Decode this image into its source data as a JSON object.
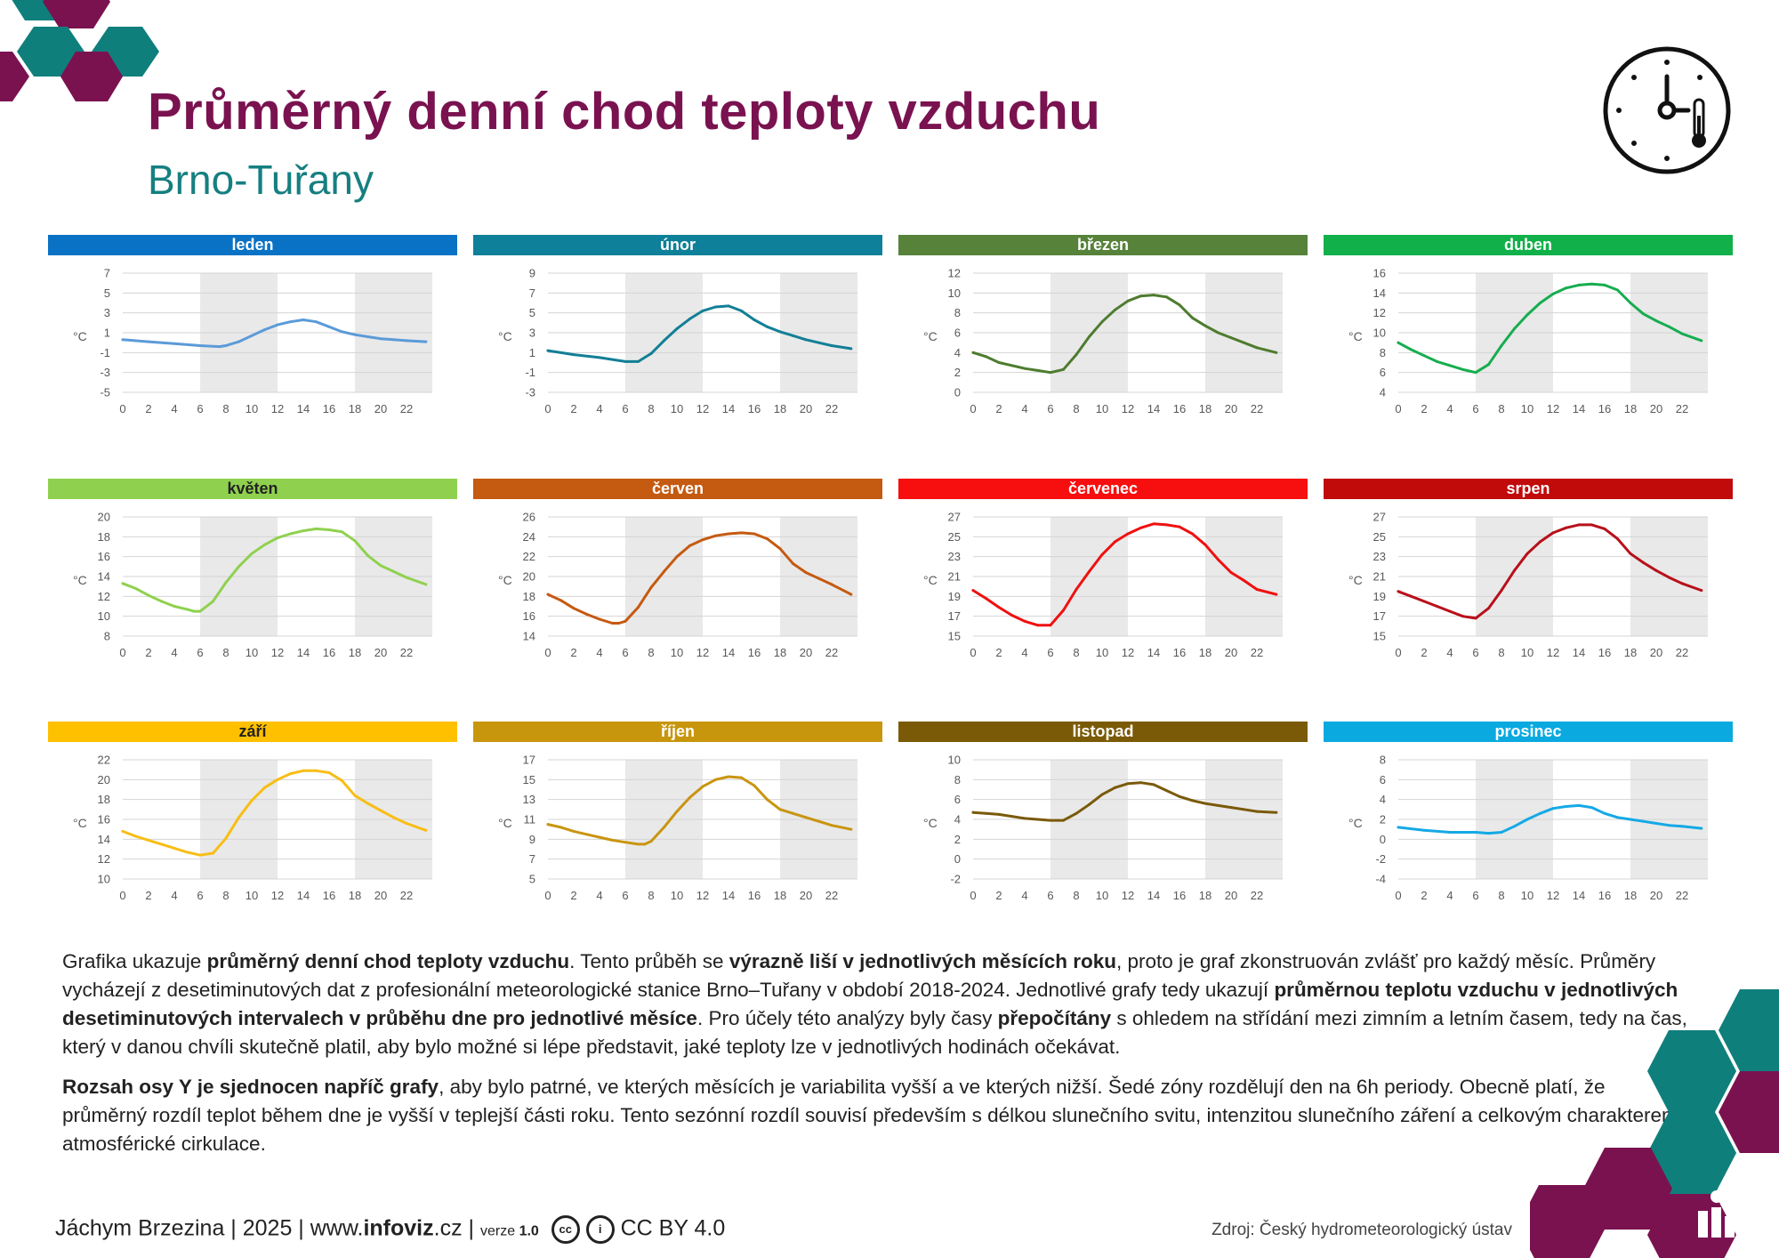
{
  "header": {
    "title": "Průměrný denní chod teploty vzduchu",
    "subtitle": "Brno-Tuřany"
  },
  "colors": {
    "title": "#7a1250",
    "subtitle": "#167f80",
    "hex_teal": "#0f7f7c",
    "hex_purple": "#7a1250",
    "grey_zone": "#e9e9e9"
  },
  "chart_data": [
    {
      "type": "line",
      "title": "leden",
      "color": "#0a72c4",
      "line_color": "#5b9bd8",
      "ylabel": "°C",
      "ylim": [
        -5,
        7
      ],
      "yticks": [
        -5,
        -3,
        -1,
        1,
        3,
        5,
        7
      ],
      "x": [
        0,
        2,
        4,
        6,
        7.5,
        8,
        9,
        10,
        11,
        12,
        13,
        14,
        15,
        16,
        17,
        18,
        19,
        20,
        21,
        22,
        23.5
      ],
      "values": [
        0.3,
        0.1,
        -0.1,
        -0.3,
        -0.4,
        -0.3,
        0.1,
        0.7,
        1.3,
        1.8,
        2.1,
        2.3,
        2.1,
        1.6,
        1.1,
        0.8,
        0.6,
        0.4,
        0.3,
        0.2,
        0.1
      ]
    },
    {
      "type": "line",
      "title": "únor",
      "color": "#0e8099",
      "line_color": "#127f96",
      "ylabel": "°C",
      "ylim": [
        -3,
        9
      ],
      "yticks": [
        -3,
        -1,
        1,
        3,
        5,
        7,
        9
      ],
      "x": [
        0,
        2,
        4,
        6,
        7,
        8,
        9,
        10,
        11,
        12,
        13,
        14,
        15,
        16,
        17,
        18,
        19,
        20,
        21,
        22,
        23.5
      ],
      "values": [
        1.2,
        0.8,
        0.5,
        0.1,
        0.1,
        0.9,
        2.2,
        3.4,
        4.4,
        5.2,
        5.6,
        5.7,
        5.2,
        4.3,
        3.6,
        3.1,
        2.7,
        2.3,
        2.0,
        1.7,
        1.4
      ]
    },
    {
      "type": "line",
      "title": "březen",
      "color": "#56823a",
      "line_color": "#4e7c2f",
      "ylabel": "°C",
      "ylim": [
        0,
        12
      ],
      "yticks": [
        0,
        2,
        4,
        6,
        8,
        10,
        12
      ],
      "x": [
        0,
        1,
        2,
        3,
        4,
        5,
        6,
        7,
        8,
        9,
        10,
        11,
        12,
        13,
        14,
        15,
        16,
        17,
        18,
        19,
        20,
        21,
        22,
        23.5
      ],
      "values": [
        4.0,
        3.6,
        3.0,
        2.7,
        2.4,
        2.2,
        2.0,
        2.3,
        3.8,
        5.6,
        7.1,
        8.3,
        9.2,
        9.7,
        9.8,
        9.6,
        8.8,
        7.5,
        6.7,
        6.0,
        5.5,
        5.0,
        4.5,
        4.0
      ]
    },
    {
      "type": "line",
      "title": "duben",
      "color": "#11b04a",
      "line_color": "#17ad4f",
      "ylabel": "°C",
      "ylim": [
        4,
        16
      ],
      "yticks": [
        4,
        6,
        8,
        10,
        12,
        14,
        16
      ],
      "x": [
        0,
        1,
        2,
        3,
        4,
        5,
        6,
        7,
        8,
        9,
        10,
        11,
        12,
        13,
        14,
        15,
        16,
        17,
        18,
        19,
        20,
        21,
        22,
        23.5
      ],
      "values": [
        9.0,
        8.3,
        7.7,
        7.1,
        6.7,
        6.3,
        6.0,
        6.8,
        8.7,
        10.4,
        11.8,
        13.0,
        13.9,
        14.5,
        14.8,
        14.9,
        14.8,
        14.3,
        13.0,
        11.9,
        11.2,
        10.6,
        9.9,
        9.2
      ]
    },
    {
      "type": "line",
      "title": "květen",
      "color": "#8fd14f",
      "line_color": "#8fd14f",
      "ylabel": "°C",
      "ylim": [
        8,
        20
      ],
      "yticks": [
        8,
        10,
        12,
        14,
        16,
        18,
        20
      ],
      "x": [
        0,
        1,
        2,
        3,
        4,
        5,
        5.5,
        6,
        7,
        8,
        9,
        10,
        11,
        12,
        13,
        14,
        15,
        16,
        17,
        18,
        19,
        20,
        21,
        22,
        23.5
      ],
      "values": [
        13.3,
        12.8,
        12.1,
        11.5,
        11.0,
        10.7,
        10.5,
        10.5,
        11.5,
        13.4,
        15.0,
        16.3,
        17.2,
        17.9,
        18.3,
        18.6,
        18.8,
        18.7,
        18.5,
        17.6,
        16.1,
        15.1,
        14.5,
        13.9,
        13.2
      ]
    },
    {
      "type": "line",
      "title": "červen",
      "color": "#c55a11",
      "line_color": "#c55a11",
      "ylabel": "°C",
      "ylim": [
        14,
        26
      ],
      "yticks": [
        14,
        16,
        18,
        20,
        22,
        24,
        26
      ],
      "x": [
        0,
        1,
        2,
        3,
        4,
        5,
        5.5,
        6,
        7,
        8,
        9,
        10,
        11,
        12,
        13,
        14,
        15,
        16,
        17,
        18,
        19,
        20,
        21,
        22,
        23.5
      ],
      "values": [
        18.2,
        17.6,
        16.8,
        16.2,
        15.7,
        15.3,
        15.3,
        15.5,
        16.9,
        18.9,
        20.5,
        22.0,
        23.1,
        23.7,
        24.1,
        24.3,
        24.4,
        24.3,
        23.8,
        22.8,
        21.3,
        20.4,
        19.8,
        19.2,
        18.2
      ]
    },
    {
      "type": "line",
      "title": "červenec",
      "color": "#f70e0e",
      "line_color": "#f01010",
      "ylabel": "°C",
      "ylim": [
        15,
        27
      ],
      "yticks": [
        15,
        17,
        19,
        21,
        23,
        25,
        27
      ],
      "x": [
        0,
        1,
        2,
        3,
        4,
        5,
        6,
        7,
        8,
        9,
        10,
        11,
        12,
        13,
        14,
        15,
        16,
        17,
        18,
        19,
        20,
        21,
        22,
        23.5
      ],
      "values": [
        19.6,
        18.8,
        17.9,
        17.1,
        16.5,
        16.1,
        16.1,
        17.6,
        19.7,
        21.5,
        23.2,
        24.5,
        25.3,
        25.9,
        26.3,
        26.2,
        26.0,
        25.3,
        24.2,
        22.7,
        21.4,
        20.6,
        19.7,
        19.2
      ]
    },
    {
      "type": "line",
      "title": "srpen",
      "color": "#c10a0a",
      "line_color": "#b8101a",
      "ylabel": "°C",
      "ylim": [
        15,
        27
      ],
      "yticks": [
        15,
        17,
        19,
        21,
        23,
        25,
        27
      ],
      "x": [
        0,
        1,
        2,
        3,
        4,
        5,
        6,
        7,
        8,
        9,
        10,
        11,
        12,
        13,
        14,
        15,
        16,
        17,
        18,
        19,
        20,
        21,
        22,
        23.5
      ],
      "values": [
        19.5,
        19.0,
        18.5,
        18.0,
        17.5,
        17.0,
        16.8,
        17.8,
        19.6,
        21.6,
        23.3,
        24.5,
        25.4,
        25.9,
        26.2,
        26.2,
        25.8,
        24.8,
        23.3,
        22.4,
        21.6,
        20.9,
        20.3,
        19.6
      ]
    },
    {
      "type": "line",
      "title": "září",
      "color": "#ffc000",
      "line_color": "#f7be16",
      "ylabel": "°C",
      "ylim": [
        10,
        22
      ],
      "yticks": [
        10,
        12,
        14,
        16,
        18,
        20,
        22
      ],
      "x": [
        0,
        1,
        2,
        3,
        4,
        5,
        6,
        7,
        8,
        9,
        10,
        11,
        12,
        13,
        14,
        15,
        16,
        17,
        18,
        19,
        20,
        21,
        22,
        23.5
      ],
      "values": [
        14.8,
        14.3,
        13.9,
        13.5,
        13.1,
        12.7,
        12.4,
        12.6,
        14.1,
        16.2,
        17.9,
        19.2,
        20.0,
        20.6,
        20.9,
        20.9,
        20.7,
        19.9,
        18.4,
        17.6,
        16.9,
        16.2,
        15.6,
        14.9
      ]
    },
    {
      "type": "line",
      "title": "říjen",
      "color": "#c8960c",
      "line_color": "#c99510",
      "ylabel": "°C",
      "ylim": [
        5,
        17
      ],
      "yticks": [
        5,
        7,
        9,
        11,
        13,
        15,
        17
      ],
      "x": [
        0,
        1,
        2,
        3,
        4,
        5,
        6,
        7,
        7.5,
        8,
        9,
        10,
        11,
        12,
        13,
        14,
        15,
        16,
        17,
        18,
        19,
        20,
        21,
        22,
        23.5
      ],
      "values": [
        10.5,
        10.2,
        9.8,
        9.5,
        9.2,
        8.9,
        8.7,
        8.5,
        8.5,
        8.8,
        10.2,
        11.8,
        13.2,
        14.3,
        15.0,
        15.3,
        15.2,
        14.4,
        13.0,
        12.0,
        11.6,
        11.2,
        10.8,
        10.4,
        10.0
      ]
    },
    {
      "type": "line",
      "title": "listopad",
      "color": "#7a5a06",
      "line_color": "#7a5a0a",
      "ylabel": "°C",
      "ylim": [
        -2,
        10
      ],
      "yticks": [
        -2,
        0,
        2,
        4,
        6,
        8,
        10
      ],
      "x": [
        0,
        1,
        2,
        3,
        4,
        5,
        6,
        7,
        8,
        9,
        10,
        11,
        12,
        13,
        14,
        15,
        16,
        17,
        18,
        19,
        20,
        21,
        22,
        23.5
      ],
      "values": [
        4.7,
        4.6,
        4.5,
        4.3,
        4.1,
        4.0,
        3.9,
        3.9,
        4.6,
        5.5,
        6.5,
        7.2,
        7.6,
        7.7,
        7.5,
        6.9,
        6.3,
        5.9,
        5.6,
        5.4,
        5.2,
        5.0,
        4.8,
        4.7
      ]
    },
    {
      "type": "line",
      "title": "prosinec",
      "color": "#0aa9e0",
      "line_color": "#15a9e5",
      "ylabel": "°C",
      "ylim": [
        -4,
        8
      ],
      "yticks": [
        -4,
        -2,
        0,
        2,
        4,
        6,
        8
      ],
      "x": [
        0,
        2,
        4,
        6,
        7,
        8,
        9,
        10,
        11,
        12,
        13,
        14,
        15,
        16,
        17,
        18,
        19,
        20,
        21,
        22,
        23.5
      ],
      "values": [
        1.2,
        0.9,
        0.7,
        0.7,
        0.6,
        0.7,
        1.3,
        2.0,
        2.6,
        3.1,
        3.3,
        3.4,
        3.2,
        2.6,
        2.2,
        2.0,
        1.8,
        1.6,
        1.4,
        1.3,
        1.1
      ]
    }
  ],
  "x_ticks": [
    "0",
    "2",
    "4",
    "6",
    "8",
    "10",
    "12",
    "14",
    "16",
    "18",
    "20",
    "22"
  ],
  "description": {
    "p1": [
      {
        "t": "Grafika ukazuje ",
        "b": false
      },
      {
        "t": "průměrný denní chod teploty vzduchu",
        "b": true
      },
      {
        "t": ". Tento průběh se ",
        "b": false
      },
      {
        "t": "výrazně liší v jednotlivých měsících roku",
        "b": true
      },
      {
        "t": ", proto je graf zkonstruován zvlášť pro každý měsíc. Průměry vycházejí z desetiminutových dat z profesionální meteorologické stanice Brno–Tuřany v období 2018-2024. Jednotlivé grafy tedy ukazují ",
        "b": false
      },
      {
        "t": "průměrnou teplotu vzduchu v jednotlivých desetiminutových intervalech v průběhu dne pro jednotlivé měsíce",
        "b": true
      },
      {
        "t": ". Pro účely této analýzy byly časy ",
        "b": false
      },
      {
        "t": "přepočítány",
        "b": true
      },
      {
        "t": " s ohledem na střídání mezi zimním a letním časem, tedy na čas, který v danou chvíli skutečně platil, aby bylo možné si lépe představit, jaké teploty lze v jednotlivých hodinách očekávat.",
        "b": false
      }
    ],
    "p2": [
      {
        "t": "Rozsah osy Y je sjednocen napříč grafy",
        "b": true
      },
      {
        "t": ", aby bylo patrné, ve kterých měsících je variabilita vyšší a ve kterých nižší. Šedé zóny rozdělují den na 6h periody. Obecně platí, že průměrný rozdíl teplot během dne je vyšší v teplejší části roku. Tento sezónní rozdíl souvisí především s délkou slunečního svitu, intenzitou slunečního záření a celkovým charakterem atmosférické cirkulace.",
        "b": false
      }
    ]
  },
  "footer": {
    "author": "Jáchym Brzezina | 2025 | www.",
    "site_bold": "infoviz",
    "site_tld": ".cz",
    "sep": " | ",
    "version_label": "verze ",
    "version": "1.0",
    "cc_icon": "cc",
    "by_icon": "i",
    "license": "CC BY 4.0",
    "source": "Zdroj: Český hydrometeorologický ústav"
  },
  "icons": [
    "hexagon-decoration",
    "clock-thermometer-icon",
    "infoviz-logo-icon"
  ]
}
